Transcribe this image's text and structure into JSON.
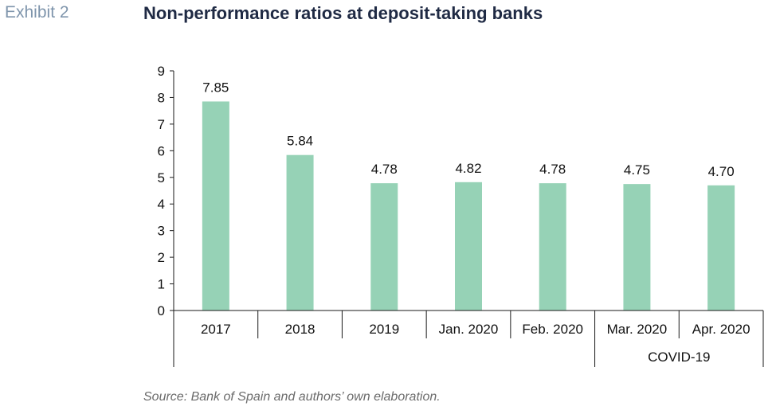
{
  "header": {
    "exhibit_label": "Exhibit 2",
    "title": "Non-performance ratios at deposit-taking banks"
  },
  "footer": {
    "source": "Source: Bank of Spain and authors’ own elaboration."
  },
  "chart_data": {
    "type": "bar",
    "title": "Non-performance ratios at deposit-taking banks",
    "xlabel": "",
    "ylabel": "",
    "ylim": [
      0,
      9
    ],
    "yticks": [
      "0",
      "1",
      "2",
      "3",
      "4",
      "5",
      "6",
      "7",
      "8",
      "9"
    ],
    "categories": [
      "2017",
      "2018",
      "2019",
      "Jan. 2020",
      "Feb. 2020",
      "Mar. 2020",
      "Apr. 2020"
    ],
    "values": [
      7.85,
      5.84,
      4.78,
      4.82,
      4.78,
      4.75,
      4.7
    ],
    "data_labels": [
      "7.85",
      "5.84",
      "4.78",
      "4.82",
      "4.78",
      "4.75",
      "4.70"
    ],
    "group_label": {
      "text": "COVID-19",
      "categories": [
        "Mar. 2020",
        "Apr. 2020"
      ]
    },
    "bar_color": "#96d2b6",
    "grid": false,
    "legend": "none"
  }
}
